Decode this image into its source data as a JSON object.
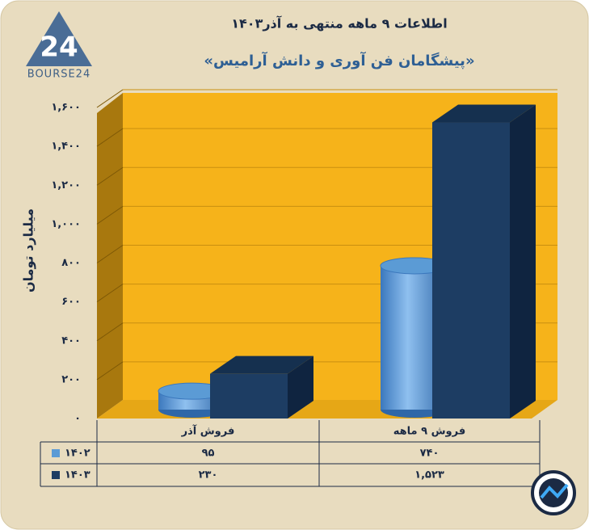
{
  "logo": "BOURSE24",
  "chart_data": {
    "type": "bar3d",
    "title": "اطلاعات ۹ ماهه منتهی به آذر۱۴۰۳",
    "subtitle": "«پیشگامان فن آوری و دانش آرامیس»",
    "y_label": "میلیارد تومان",
    "categories": [
      "فروش آذر",
      "فروش ۹ ماهه"
    ],
    "series": [
      {
        "name": "۱۴۰۲",
        "color": "#5b9bd5",
        "shape": "cylinder",
        "values": [
          95,
          740
        ],
        "value_labels": [
          "۹۵",
          "۷۴۰"
        ]
      },
      {
        "name": "۱۴۰۳",
        "color": "#1d3d63",
        "shape": "box",
        "values": [
          230,
          1523
        ],
        "value_labels": [
          "۲۳۰",
          "۱,۵۲۳"
        ]
      }
    ],
    "ylim": [
      0,
      1600
    ],
    "yticks": [
      {
        "value": 0,
        "label": "۰"
      },
      {
        "value": 200,
        "label": "۲۰۰"
      },
      {
        "value": 400,
        "label": "۴۰۰"
      },
      {
        "value": 600,
        "label": "۶۰۰"
      },
      {
        "value": 800,
        "label": "۸۰۰"
      },
      {
        "value": 1000,
        "label": "۱,۰۰۰"
      },
      {
        "value": 1200,
        "label": "۱,۲۰۰"
      },
      {
        "value": 1400,
        "label": "۱,۴۰۰"
      },
      {
        "value": 1600,
        "label": "۱,۶۰۰"
      }
    ],
    "grid": true
  }
}
